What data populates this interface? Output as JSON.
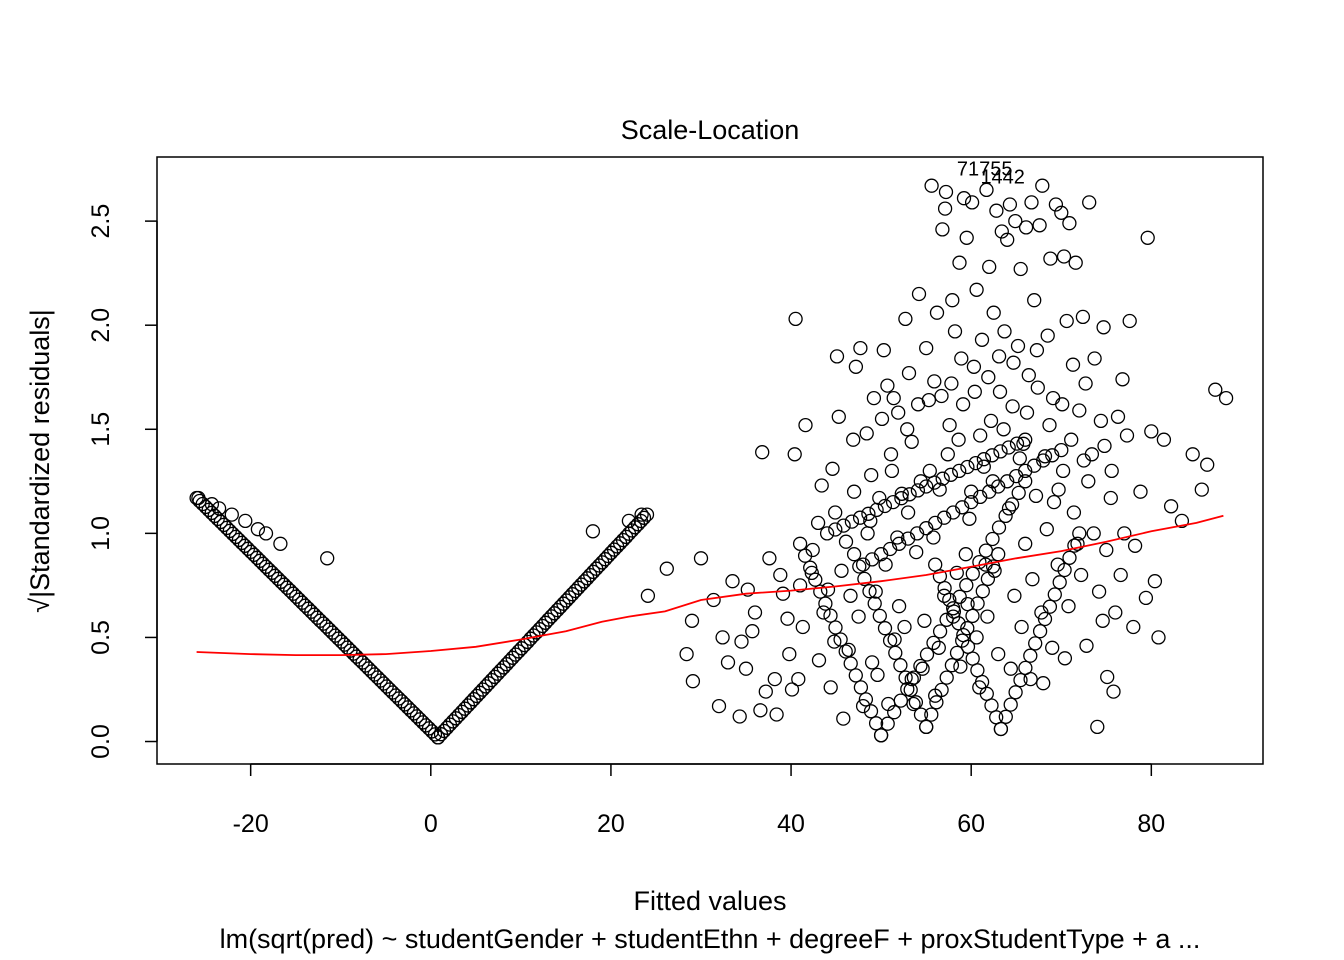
{
  "chart_data": {
    "type": "scatter",
    "title": "Scale-Location",
    "xlabel": "Fitted values",
    "ylabel": "√|Standardized residuals|",
    "subtitle": "lm(sqrt(pred) ~ studentGender + studentEthn + degreeF + proxStudentType + a ...",
    "xlim": [
      -30.4,
      92.4
    ],
    "ylim": [
      -0.108,
      2.808
    ],
    "x_ticks": [
      -20,
      0,
      20,
      40,
      60,
      80
    ],
    "x_tick_labels": [
      "-20",
      "0",
      "20",
      "40",
      "60",
      "80"
    ],
    "y_ticks": [
      0.0,
      0.5,
      1.0,
      1.5,
      2.0,
      2.5
    ],
    "y_tick_labels": [
      "0.0",
      "0.5",
      "1.0",
      "1.5",
      "2.0",
      "2.5"
    ],
    "grid": false,
    "point_color": "#000000",
    "smooth_color": "#ff0000",
    "annotation": {
      "text": "71755",
      "overlap_text": "1442",
      "x": 61.5,
      "y": 2.72
    },
    "smoother": {
      "x": [
        -26,
        -20,
        -15,
        -10,
        -5,
        0,
        5,
        10,
        15,
        19,
        22,
        26,
        30,
        35,
        40,
        45,
        50,
        55,
        60,
        65,
        70,
        75,
        80,
        85,
        88
      ],
      "y": [
        0.43,
        0.42,
        0.415,
        0.415,
        0.42,
        0.435,
        0.455,
        0.49,
        0.53,
        0.575,
        0.6,
        0.625,
        0.68,
        0.71,
        0.725,
        0.745,
        0.77,
        0.8,
        0.84,
        0.88,
        0.915,
        0.96,
        1.01,
        1.05,
        1.085
      ]
    },
    "arms": [
      {
        "x_from": -26,
        "x_to": 0.8,
        "y_from": 1.17,
        "y_to": 0.02,
        "n": 80
      },
      {
        "x_from": 0.8,
        "x_to": 24,
        "y_from": 0.02,
        "y_to": 1.09,
        "n": 70
      },
      {
        "x_from": 41,
        "x_to": 50,
        "y_from": 0.95,
        "y_to": 0.03,
        "n": 16
      },
      {
        "x_from": 50,
        "x_to": 66,
        "y_from": 0.03,
        "y_to": 1.25,
        "n": 22
      },
      {
        "x_from": 47,
        "x_to": 55,
        "y_from": 0.9,
        "y_to": 0.07,
        "n": 14
      },
      {
        "x_from": 55,
        "x_to": 63,
        "y_from": 0.07,
        "y_to": 0.9,
        "n": 14
      },
      {
        "x_from": 56,
        "x_to": 63.3,
        "y_from": 0.85,
        "y_to": 0.06,
        "n": 14
      },
      {
        "x_from": 63.3,
        "x_to": 72,
        "y_from": 0.06,
        "y_to": 1.0,
        "n": 16
      },
      {
        "x_from": 44,
        "x_to": 66,
        "y_from": 1.0,
        "y_to": 1.45,
        "n": 24
      },
      {
        "x_from": 48,
        "x_to": 70,
        "y_from": 0.85,
        "y_to": 1.4,
        "n": 22
      }
    ],
    "points": [
      [
        -25.8,
        1.17
      ],
      [
        -24.3,
        1.14
      ],
      [
        -23.5,
        1.12
      ],
      [
        -22.1,
        1.09
      ],
      [
        -20.6,
        1.06
      ],
      [
        -19.2,
        1.02
      ],
      [
        -18.3,
        1.0
      ],
      [
        -16.7,
        0.95
      ],
      [
        -11.5,
        0.88
      ],
      [
        18,
        1.01
      ],
      [
        22,
        1.06
      ],
      [
        23.4,
        1.09
      ],
      [
        24.1,
        0.7
      ],
      [
        26.2,
        0.83
      ],
      [
        28.4,
        0.42
      ],
      [
        29,
        0.58
      ],
      [
        29.1,
        0.29
      ],
      [
        30,
        0.88
      ],
      [
        31.4,
        0.68
      ],
      [
        32,
        0.17
      ],
      [
        32.4,
        0.5
      ],
      [
        33,
        0.38
      ],
      [
        33.5,
        0.77
      ],
      [
        34.3,
        0.12
      ],
      [
        35.2,
        0.73
      ],
      [
        35.7,
        0.53
      ],
      [
        36.6,
        0.15
      ],
      [
        36.8,
        1.39
      ],
      [
        37.2,
        0.24
      ],
      [
        37.6,
        0.88
      ],
      [
        38.2,
        0.3
      ],
      [
        38.4,
        0.13
      ],
      [
        39.1,
        0.71
      ],
      [
        39.6,
        0.59
      ],
      [
        40.1,
        0.25
      ],
      [
        40.4,
        1.38
      ],
      [
        40.5,
        2.03
      ],
      [
        41.3,
        0.55
      ],
      [
        41.6,
        1.52
      ],
      [
        42.3,
        0.81
      ],
      [
        43.1,
        0.39
      ],
      [
        43.4,
        1.23
      ],
      [
        44.1,
        0.73
      ],
      [
        44.6,
        1.31
      ],
      [
        44.8,
        0.48
      ],
      [
        45.1,
        1.85
      ],
      [
        45.3,
        1.56
      ],
      [
        45.8,
        0.11
      ],
      [
        46.1,
        0.96
      ],
      [
        46.6,
        0.7
      ],
      [
        47.2,
        1.8
      ],
      [
        47.7,
        1.89
      ],
      [
        48.4,
        1.48
      ],
      [
        48.8,
        1.06
      ],
      [
        49.2,
        1.65
      ],
      [
        49.6,
        0.32
      ],
      [
        49.8,
        1.17
      ],
      [
        50.3,
        1.88
      ],
      [
        50.7,
        1.71
      ],
      [
        51.1,
        1.38
      ],
      [
        51.5,
        0.49
      ],
      [
        51.9,
        1.58
      ],
      [
        52.3,
        1.19
      ],
      [
        52.7,
        2.03
      ],
      [
        53.1,
        1.77
      ],
      [
        53.4,
        1.44
      ],
      [
        53.9,
        0.91
      ],
      [
        54.2,
        2.15
      ],
      [
        54.6,
        0.35
      ],
      [
        55.0,
        1.89
      ],
      [
        55.3,
        1.64
      ],
      [
        55.6,
        2.67
      ],
      [
        55.9,
        1.73
      ],
      [
        56.2,
        2.06
      ],
      [
        56.5,
        1.21
      ],
      [
        56.8,
        2.46
      ],
      [
        57.1,
        2.56
      ],
      [
        57.2,
        2.64
      ],
      [
        57.6,
        1.52
      ],
      [
        57.9,
        2.12
      ],
      [
        58.2,
        1.97
      ],
      [
        58.4,
        0.81
      ],
      [
        58.7,
        2.3
      ],
      [
        58.9,
        1.84
      ],
      [
        59.2,
        2.61
      ],
      [
        59.5,
        2.42
      ],
      [
        59.8,
        1.07
      ],
      [
        60.1,
        2.59
      ],
      [
        60.4,
        1.68
      ],
      [
        60.6,
        2.17
      ],
      [
        60.9,
        0.26
      ],
      [
        61.2,
        1.93
      ],
      [
        61.4,
        1.32
      ],
      [
        61.7,
        2.65
      ],
      [
        62.0,
        2.28
      ],
      [
        62.2,
        1.54
      ],
      [
        62.5,
        2.06
      ],
      [
        62.8,
        2.55
      ],
      [
        63.1,
        1.85
      ],
      [
        63.4,
        2.45
      ],
      [
        63.7,
        1.97
      ],
      [
        64.0,
        2.41
      ],
      [
        64.3,
        2.58
      ],
      [
        64.6,
        1.61
      ],
      [
        64.9,
        2.5
      ],
      [
        65.2,
        1.9
      ],
      [
        65.5,
        2.27
      ],
      [
        65.8,
        1.43
      ],
      [
        66.1,
        2.47
      ],
      [
        66.4,
        1.76
      ],
      [
        66.7,
        2.59
      ],
      [
        67.0,
        2.12
      ],
      [
        67.3,
        1.88
      ],
      [
        67.6,
        2.48
      ],
      [
        67.9,
        2.67
      ],
      [
        68.2,
        1.37
      ],
      [
        68.5,
        1.95
      ],
      [
        68.8,
        2.32
      ],
      [
        69.1,
        1.65
      ],
      [
        69.4,
        2.58
      ],
      [
        69.7,
        1.21
      ],
      [
        70.0,
        2.54
      ],
      [
        70.3,
        2.33
      ],
      [
        70.6,
        2.02
      ],
      [
        70.9,
        2.49
      ],
      [
        71.3,
        1.81
      ],
      [
        71.6,
        2.3
      ],
      [
        72.0,
        1.59
      ],
      [
        72.4,
        2.04
      ],
      [
        72.7,
        1.72
      ],
      [
        73.1,
        2.59
      ],
      [
        73.4,
        1.38
      ],
      [
        73.7,
        1.84
      ],
      [
        74.0,
        0.07
      ],
      [
        74.4,
        1.54
      ],
      [
        74.7,
        1.99
      ],
      [
        75.1,
        0.31
      ],
      [
        75.5,
        1.17
      ],
      [
        75.8,
        0.24
      ],
      [
        76.3,
        1.56
      ],
      [
        76.8,
        1.74
      ],
      [
        77.3,
        1.47
      ],
      [
        77.6,
        2.02
      ],
      [
        78.2,
        0.94
      ],
      [
        78.8,
        1.2
      ],
      [
        79.4,
        0.69
      ],
      [
        79.6,
        2.42
      ],
      [
        80.0,
        1.49
      ],
      [
        80.4,
        0.77
      ],
      [
        80.8,
        0.5
      ],
      [
        81.4,
        1.45
      ],
      [
        82.2,
        1.13
      ],
      [
        83.4,
        1.06
      ],
      [
        84.6,
        1.38
      ],
      [
        85.6,
        1.21
      ],
      [
        86.2,
        1.33
      ],
      [
        87.1,
        1.69
      ],
      [
        88.3,
        1.65
      ],
      [
        47.5,
        0.6
      ],
      [
        48.5,
        1.0
      ],
      [
        49,
        0.38
      ],
      [
        50.5,
        0.85
      ],
      [
        51.2,
        1.3
      ],
      [
        52,
        0.65
      ],
      [
        53,
        1.1
      ],
      [
        53.6,
        0.18
      ],
      [
        54.4,
        1.25
      ],
      [
        55.8,
        0.98
      ],
      [
        56.4,
        0.45
      ],
      [
        57.4,
        1.38
      ],
      [
        58,
        0.6
      ],
      [
        58.6,
        1.45
      ],
      [
        59.4,
        0.9
      ],
      [
        60,
        1.2
      ],
      [
        60.6,
        0.5
      ],
      [
        61,
        1.47
      ],
      [
        61.6,
        0.85
      ],
      [
        62.4,
        1.25
      ],
      [
        63,
        0.42
      ],
      [
        63.6,
        1.5
      ],
      [
        64.2,
        1.12
      ],
      [
        64.8,
        0.7
      ],
      [
        65.4,
        1.36
      ],
      [
        66,
        0.95
      ],
      [
        66.6,
        0.3
      ],
      [
        67.2,
        1.18
      ],
      [
        67.8,
        0.62
      ],
      [
        68.4,
        1.02
      ],
      [
        69,
        0.45
      ],
      [
        69.6,
        0.85
      ],
      [
        70.2,
        1.3
      ],
      [
        70.8,
        0.65
      ],
      [
        71.4,
        1.1
      ],
      [
        72.2,
        0.8
      ],
      [
        72.8,
        0.46
      ],
      [
        73.6,
        1.0
      ],
      [
        74.2,
        0.72
      ],
      [
        75,
        0.92
      ],
      [
        76,
        0.62
      ],
      [
        77,
        1.0
      ],
      [
        78,
        0.55
      ],
      [
        42.4,
        0.92
      ],
      [
        43.6,
        0.62
      ],
      [
        44.4,
        0.26
      ],
      [
        45.6,
        0.82
      ],
      [
        46.4,
        0.44
      ],
      [
        47,
        1.2
      ],
      [
        48,
        0.17
      ],
      [
        49.4,
        0.72
      ],
      [
        50.8,
        0.18
      ],
      [
        51.8,
        0.98
      ],
      [
        52.6,
        0.55
      ],
      [
        53.4,
        0.3
      ],
      [
        54.8,
        0.58
      ],
      [
        56,
        0.22
      ],
      [
        57,
        0.7
      ],
      [
        58.8,
        0.36
      ],
      [
        59.6,
        0.66
      ],
      [
        61.8,
        0.6
      ],
      [
        62.6,
        0.82
      ],
      [
        64.4,
        0.35
      ],
      [
        65.6,
        0.55
      ],
      [
        66.8,
        0.78
      ],
      [
        68,
        0.28
      ],
      [
        69.2,
        1.15
      ],
      [
        70.4,
        0.4
      ],
      [
        71.8,
        0.95
      ],
      [
        73,
        1.25
      ],
      [
        74.6,
        0.58
      ],
      [
        75.6,
        1.3
      ],
      [
        76.6,
        0.8
      ],
      [
        35,
        0.35
      ],
      [
        36,
        0.62
      ],
      [
        34.5,
        0.48
      ],
      [
        38.8,
        0.8
      ],
      [
        39.8,
        0.42
      ],
      [
        41,
        0.75
      ],
      [
        40.8,
        0.3
      ],
      [
        43,
        1.05
      ],
      [
        44.9,
        1.1
      ],
      [
        46.9,
        1.45
      ],
      [
        48.9,
        1.28
      ],
      [
        50.1,
        1.55
      ],
      [
        51.4,
        1.65
      ],
      [
        52.9,
        1.5
      ],
      [
        54.1,
        1.62
      ],
      [
        55.4,
        1.3
      ],
      [
        56.7,
        1.66
      ],
      [
        57.8,
        1.72
      ],
      [
        59.1,
        1.62
      ],
      [
        60.3,
        1.8
      ],
      [
        61.9,
        1.75
      ],
      [
        63.2,
        1.68
      ],
      [
        64.7,
        1.82
      ],
      [
        66.2,
        1.58
      ],
      [
        67.4,
        1.7
      ],
      [
        68.7,
        1.52
      ],
      [
        70.1,
        1.62
      ],
      [
        71.1,
        1.45
      ],
      [
        72.5,
        1.35
      ],
      [
        74.8,
        1.42
      ]
    ]
  }
}
